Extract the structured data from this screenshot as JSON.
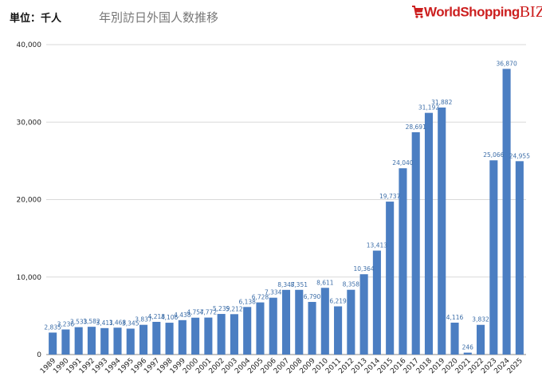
{
  "header": {
    "unit_label": "単位：千人",
    "title": "年別訪日外国人数推移",
    "logo_word": "WorldShopping",
    "logo_suffix": "BIZ"
  },
  "colors": {
    "bar": "#4b7ec2",
    "label": "#3d6ea8",
    "grid": "#d9d9d9",
    "logo": "#cc1f1f"
  },
  "chart_data": {
    "type": "bar",
    "title": "年別訪日外国人数推移",
    "xlabel": "",
    "ylabel": "",
    "ylim": [
      0,
      40000
    ],
    "yticks": [
      "0",
      "10,000",
      "20,000",
      "30,000",
      "40,000"
    ],
    "grid": true,
    "categories": [
      "1989",
      "1990",
      "1991",
      "1992",
      "1993",
      "1994",
      "1995",
      "1996",
      "1997",
      "1998",
      "1999",
      "2000",
      "2001",
      "2002",
      "2003",
      "2004",
      "2005",
      "2006",
      "2007",
      "2008",
      "2009",
      "2010",
      "2011",
      "2012",
      "2013",
      "2014",
      "2015",
      "2016",
      "2017",
      "2018",
      "2019",
      "2020",
      "2021",
      "2022",
      "2023",
      "2024",
      "2025"
    ],
    "values": [
      2835,
      3236,
      3533,
      3582,
      3411,
      3468,
      3345,
      3837,
      4218,
      4106,
      4438,
      4757,
      4772,
      5239,
      5212,
      6138,
      6728,
      7334,
      8347,
      8351,
      6790,
      8611,
      6219,
      8358,
      10364,
      13413,
      19737,
      24040,
      28691,
      31192,
      31882,
      4116,
      246,
      3832,
      25066,
      36870,
      24955
    ],
    "labels": [
      "2,835",
      "3,236",
      "3,533",
      "3,582",
      "3,411",
      "3,468",
      "3,345",
      "3,837",
      "4,218",
      "4,106",
      "4,438",
      "4,757",
      "4,772",
      "5,239",
      "5,212",
      "6,138",
      "6,728",
      "7,334",
      "8,347",
      "8,351",
      "6,790",
      "8,611",
      "6,219",
      "8,358",
      "10,364",
      "13,413",
      "19,737",
      "24,040",
      "28,691",
      "31,192",
      "31,882",
      "4,116",
      "246",
      "3,832",
      "25,066",
      "36,870",
      "24,955"
    ]
  }
}
